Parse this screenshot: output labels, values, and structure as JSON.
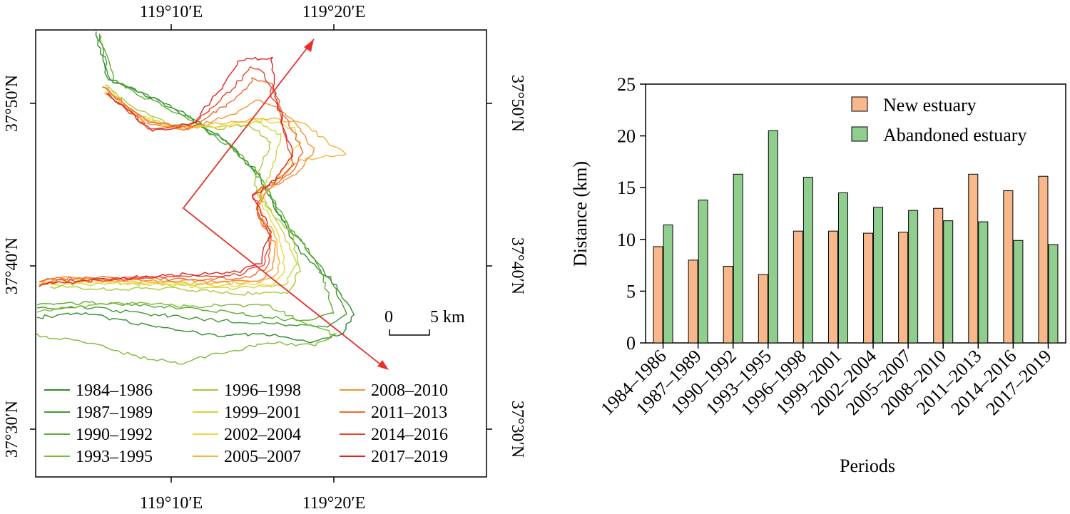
{
  "map": {
    "lon_ticks": [
      "119°10′E",
      "119°20′E"
    ],
    "lat_ticks": [
      "37°50′N",
      "37°40′N",
      "37°30′N"
    ],
    "scale_bar": {
      "start_label": "0",
      "end_label": "5 km"
    },
    "legend": [
      {
        "label": "1984–1986",
        "color": "#2e8b2e"
      },
      {
        "label": "1987–1989",
        "color": "#3f9a30"
      },
      {
        "label": "1990–1992",
        "color": "#5aad32"
      },
      {
        "label": "1993–1995",
        "color": "#7dbb36"
      },
      {
        "label": "1996–1998",
        "color": "#a6cc3a"
      },
      {
        "label": "1999–2001",
        "color": "#cfd63c"
      },
      {
        "label": "2002–2004",
        "color": "#f2d83a"
      },
      {
        "label": "2005–2007",
        "color": "#f6b436"
      },
      {
        "label": "2008–2010",
        "color": "#f59033"
      },
      {
        "label": "2011–2013",
        "color": "#ef6a2e"
      },
      {
        "label": "2014–2016",
        "color": "#e8452b"
      },
      {
        "label": "2017–2019",
        "color": "#e02424"
      }
    ],
    "arrow_color": "#e8312a"
  },
  "chart_data": {
    "type": "bar",
    "categories": [
      "1984–1986",
      "1987–1989",
      "1990–1992",
      "1993–1995",
      "1996–1998",
      "1999–2001",
      "2002–2004",
      "2005–2007",
      "2008–2010",
      "2011–2013",
      "2014–2016",
      "2017–2019"
    ],
    "series": [
      {
        "name": "New estuary",
        "color": "#f8b88b",
        "values": [
          9.3,
          8.0,
          7.4,
          6.6,
          10.8,
          10.8,
          10.6,
          10.7,
          13.0,
          16.3,
          14.7,
          16.1
        ]
      },
      {
        "name": "Abandoned estuary",
        "color": "#8fce8f",
        "values": [
          11.4,
          13.8,
          16.3,
          20.5,
          16.0,
          14.5,
          13.1,
          12.8,
          11.8,
          11.7,
          9.9,
          9.5
        ]
      }
    ],
    "xlabel": "Periods",
    "ylabel": "Distance (km)",
    "ylim": [
      0,
      25
    ],
    "yticks": [
      0,
      5,
      10,
      15,
      20,
      25
    ],
    "legend_position": "top-right"
  }
}
